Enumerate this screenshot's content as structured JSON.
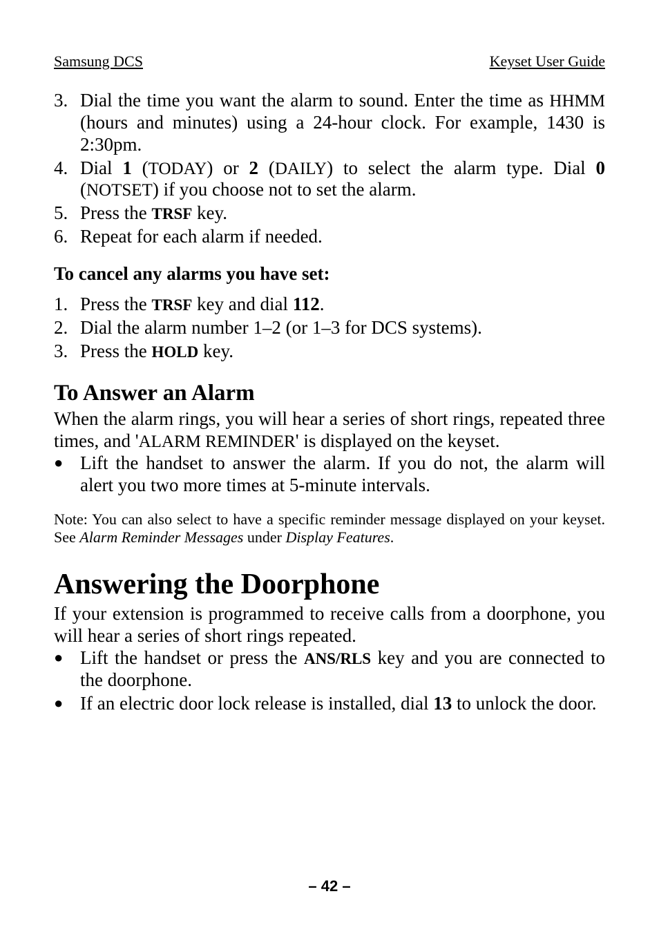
{
  "header": {
    "left": "Samsung DCS",
    "right": "Keyset User Guide"
  },
  "list1": [
    {
      "num": "3.",
      "parts": [
        {
          "t": "Dial the time you want the alarm to sound. Enter the time as "
        },
        {
          "t": "HHMM",
          "cls": "sc"
        },
        {
          "t": " (hours and minutes) using a 24-hour clock. For example, 1430 is 2:30pm."
        }
      ]
    },
    {
      "num": "4.",
      "parts": [
        {
          "t": "Dial "
        },
        {
          "t": "1",
          "cls": "bold"
        },
        {
          "t": " ("
        },
        {
          "t": "TODAY",
          "cls": "sc"
        },
        {
          "t": ") or "
        },
        {
          "t": "2",
          "cls": "bold"
        },
        {
          "t": " ("
        },
        {
          "t": "DAILY",
          "cls": "sc"
        },
        {
          "t": ") to select the alarm type. Dial "
        },
        {
          "t": "0",
          "cls": "bold"
        },
        {
          "t": " ("
        },
        {
          "t": "NOTSET",
          "cls": "sc"
        },
        {
          "t": ") if you choose not to set the alarm."
        }
      ]
    },
    {
      "num": "5.",
      "parts": [
        {
          "t": "Press the "
        },
        {
          "t": "TRSF",
          "cls": "bold smallcaps"
        },
        {
          "t": " key."
        }
      ]
    },
    {
      "num": "6.",
      "parts": [
        {
          "t": "Repeat for each alarm if needed."
        }
      ]
    }
  ],
  "subhead1": "To cancel any alarms you have set:",
  "list2": [
    {
      "num": "1.",
      "parts": [
        {
          "t": "Press the "
        },
        {
          "t": "TRSF",
          "cls": "bold smallcaps"
        },
        {
          "t": " key and dial "
        },
        {
          "t": "112",
          "cls": "bold"
        },
        {
          "t": "."
        }
      ]
    },
    {
      "num": "2.",
      "parts": [
        {
          "t": "Dial the alarm number 1–2 (or 1–3 for DCS systems)."
        }
      ]
    },
    {
      "num": "3.",
      "parts": [
        {
          "t": "Press the "
        },
        {
          "t": "HOLD",
          "cls": "bold smallcaps"
        },
        {
          "t": " key."
        }
      ]
    }
  ],
  "h2a": "To Answer an Alarm",
  "para_h2a": [
    {
      "t": "When the alarm rings, you will hear a series of short rings, repeated three times, and '"
    },
    {
      "t": "ALARM REMINDER",
      "cls": "sc"
    },
    {
      "t": "' is displayed on the keyset."
    }
  ],
  "bullets_h2a": [
    {
      "parts": [
        {
          "t": "Lift the handset to answer the alarm. If you do not, the alarm will alert you two more times at 5-minute intervals."
        }
      ]
    }
  ],
  "note1": [
    {
      "t": "Note: You can also select to have a specific reminder message displayed on your keyset. See "
    },
    {
      "t": "Alarm Reminder Messages",
      "cls": "italic"
    },
    {
      "t": " under "
    },
    {
      "t": "Display Features",
      "cls": "italic"
    },
    {
      "t": "."
    }
  ],
  "h1a": "Answering the Doorphone",
  "para_h1a": [
    {
      "t": "If your extension is programmed to receive calls from a doorphone, you will hear a series of short rings repeated."
    }
  ],
  "bullets_h1a": [
    {
      "parts": [
        {
          "t": "Lift the handset or press the "
        },
        {
          "t": "ANS/RLS",
          "cls": "bold smallcaps"
        },
        {
          "t": " key and you are connected to the doorphone."
        }
      ]
    },
    {
      "parts": [
        {
          "t": "If an electric door lock release is installed, dial "
        },
        {
          "t": "13",
          "cls": "bold"
        },
        {
          "t": " to unlock the door."
        }
      ]
    }
  ],
  "footer": "– 42 –"
}
